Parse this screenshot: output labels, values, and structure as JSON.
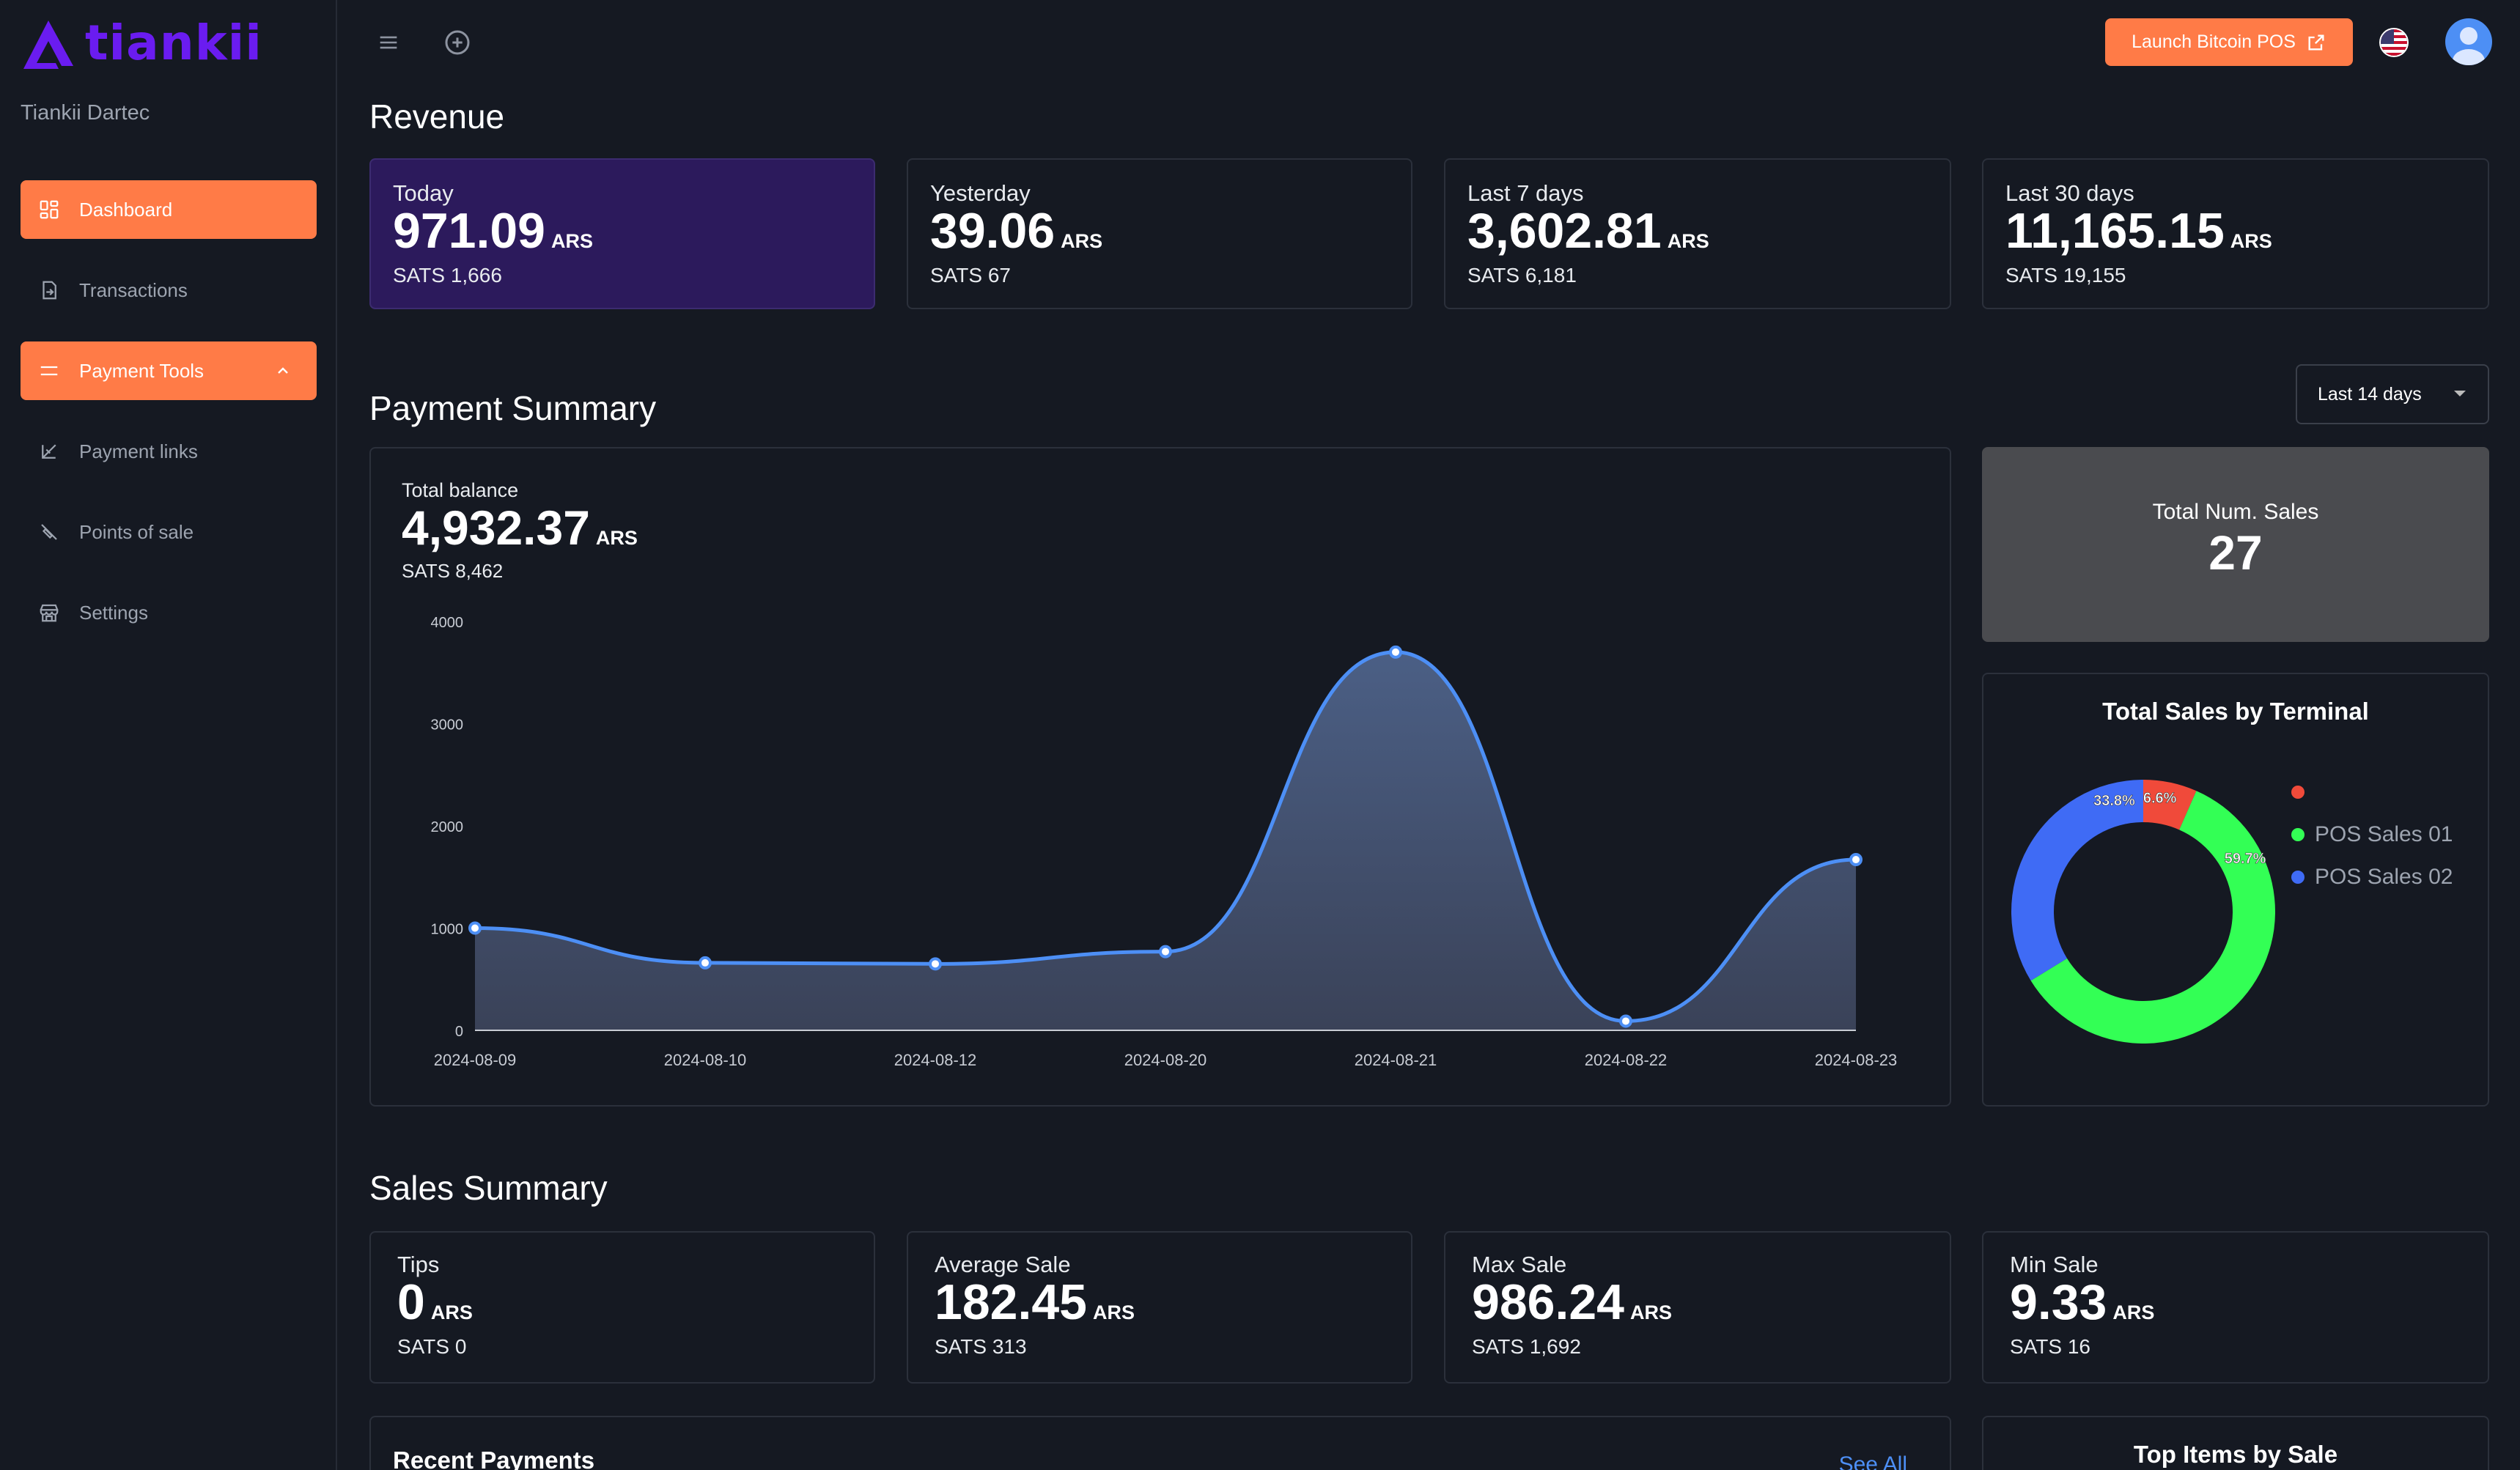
{
  "brand": {
    "name": "tiankii",
    "org": "Tiankii Dartec",
    "color": "#6a1cf0"
  },
  "sidebar": {
    "items": [
      {
        "label": "Dashboard",
        "icon": "dashboard-icon",
        "active": true
      },
      {
        "label": "Transactions",
        "icon": "transactions-icon"
      },
      {
        "label": "Payment Tools",
        "icon": "payment-tools-icon",
        "active": true,
        "expanded": true
      },
      {
        "label": "Payment links",
        "icon": "link-icon"
      },
      {
        "label": "Points of sale",
        "icon": "pos-icon"
      },
      {
        "label": "Settings",
        "icon": "store-icon"
      }
    ]
  },
  "topbar": {
    "launch_label": "Launch Bitcoin POS",
    "menu_icon": "hamburger-icon",
    "add_icon": "plus-circle-icon",
    "flag_icon": "us-flag-icon",
    "avatar_icon": "user-avatar-icon"
  },
  "revenue": {
    "title": "Revenue",
    "cards": [
      {
        "label": "Today",
        "value": "971.09",
        "currency": "ARS",
        "sats": "SATS 1,666"
      },
      {
        "label": "Yesterday",
        "value": "39.06",
        "currency": "ARS",
        "sats": "SATS 67"
      },
      {
        "label": "Last 7 days",
        "value": "3,602.81",
        "currency": "ARS",
        "sats": "SATS 6,181"
      },
      {
        "label": "Last 30 days",
        "value": "11,165.15",
        "currency": "ARS",
        "sats": "SATS 19,155"
      }
    ]
  },
  "payment_summary": {
    "title": "Payment Summary",
    "range": "Last 14 days",
    "balance_label": "Total balance",
    "balance_value": "4,932.37",
    "balance_currency": "ARS",
    "balance_sats": "SATS 8,462",
    "num_sales_label": "Total Num. Sales",
    "num_sales_value": "27",
    "terminal_title": "Total Sales by Terminal",
    "legend": [
      {
        "name": "",
        "color": "#f04a3a"
      },
      {
        "name": "POS Sales 01",
        "color": "#33ff55"
      },
      {
        "name": "POS Sales 02",
        "color": "#3f6bf5"
      }
    ]
  },
  "chart_data": [
    {
      "type": "area",
      "x": [
        "2024-08-09",
        "2024-08-10",
        "2024-08-12",
        "2024-08-20",
        "2024-08-21",
        "2024-08-22",
        "2024-08-23"
      ],
      "series": [
        {
          "values": [
            1000,
            660,
            650,
            770,
            3700,
            90,
            1670
          ]
        }
      ],
      "ylim": [
        0,
        4000
      ],
      "yticks": [
        0,
        1000,
        2000,
        3000,
        4000
      ],
      "color": "#4d8ff5"
    },
    {
      "type": "pie",
      "title": "Total Sales by Terminal",
      "slices": [
        {
          "label": "6.6%",
          "value": 6.6,
          "color": "#f04a3a"
        },
        {
          "label": "59.7%",
          "value": 59.7,
          "color": "#33ff55"
        },
        {
          "label": "33.8%",
          "value": 33.8,
          "color": "#3f6bf5"
        }
      ]
    }
  ],
  "sales_summary": {
    "title": "Sales Summary",
    "cards": [
      {
        "label": "Tips",
        "value": "0",
        "currency": "ARS",
        "sats": "SATS 0"
      },
      {
        "label": "Average Sale",
        "value": "182.45",
        "currency": "ARS",
        "sats": "SATS 313"
      },
      {
        "label": "Max Sale",
        "value": "986.24",
        "currency": "ARS",
        "sats": "SATS 1,692"
      },
      {
        "label": "Min Sale",
        "value": "9.33",
        "currency": "ARS",
        "sats": "SATS 16"
      }
    ]
  },
  "recent_payments": {
    "title": "Recent Payments",
    "see_all": "See All"
  },
  "top_items": {
    "title": "Top Items by Sale"
  }
}
